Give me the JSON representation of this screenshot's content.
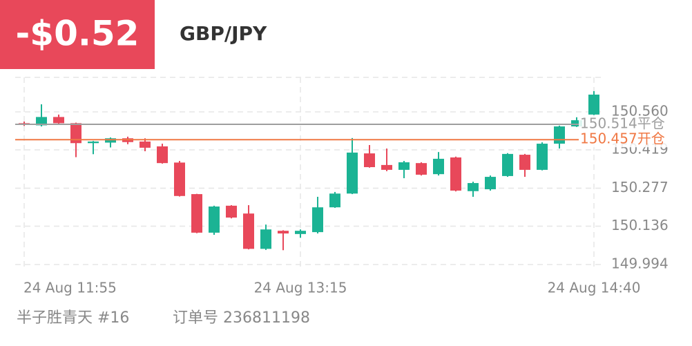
{
  "header": {
    "pnl": "-$0.52",
    "pair": "GBP/JPY"
  },
  "chart_data": {
    "type": "candlestick",
    "categories": [
      "24 Aug 11:55",
      null,
      null,
      null,
      null,
      null,
      null,
      null,
      null,
      null,
      null,
      null,
      null,
      null,
      null,
      null,
      "24 Aug 13:15",
      null,
      null,
      null,
      null,
      null,
      null,
      null,
      null,
      null,
      null,
      null,
      null,
      null,
      null,
      null,
      null,
      "24 Aug 14:40"
    ],
    "open": [
      150.518,
      150.51,
      150.541,
      150.518,
      150.444,
      150.446,
      150.462,
      150.45,
      150.432,
      150.372,
      150.255,
      150.112,
      150.212,
      150.183,
      150.052,
      150.119,
      150.107,
      150.114,
      150.206,
      150.257,
      150.406,
      150.363,
      150.345,
      150.37,
      150.329,
      150.391,
      150.266,
      150.273,
      150.322,
      150.401,
      150.345,
      150.442,
      150.506,
      150.55
    ],
    "high": [
      150.524,
      150.588,
      150.55,
      150.52,
      150.452,
      150.465,
      150.468,
      150.462,
      150.442,
      150.378,
      150.256,
      150.212,
      150.214,
      150.214,
      150.142,
      150.121,
      150.124,
      150.245,
      150.263,
      150.463,
      150.437,
      150.424,
      150.378,
      150.373,
      150.411,
      150.394,
      150.301,
      150.324,
      150.407,
      150.404,
      150.447,
      150.509,
      150.54,
      150.637
    ],
    "low": [
      150.508,
      150.506,
      150.516,
      150.392,
      150.403,
      150.428,
      150.44,
      150.414,
      150.368,
      150.246,
      150.11,
      150.104,
      150.165,
      150.05,
      150.048,
      150.047,
      150.093,
      150.109,
      150.204,
      150.255,
      150.353,
      150.34,
      150.314,
      150.324,
      150.324,
      150.265,
      150.245,
      150.268,
      150.319,
      150.319,
      150.343,
      150.424,
      150.504,
      150.548
    ],
    "close": [
      150.512,
      150.541,
      150.518,
      150.444,
      150.45,
      150.462,
      150.448,
      150.427,
      150.37,
      150.248,
      150.112,
      150.209,
      150.168,
      150.052,
      150.124,
      150.109,
      150.119,
      150.206,
      150.257,
      150.409,
      150.355,
      150.345,
      150.373,
      150.327,
      150.386,
      150.268,
      150.296,
      150.319,
      150.404,
      150.345,
      150.442,
      150.506,
      150.529,
      150.624
    ],
    "up_color": "#1bb394",
    "down_color": "#e8485a",
    "ylim": [
      149.976,
      150.688
    ],
    "yticks": [
      149.994,
      150.136,
      150.277,
      150.419,
      {
        "value": 150.56,
        "label": "150.560"
      }
    ],
    "grid": true,
    "lines": [
      {
        "value": 150.514,
        "label": "150.514平仓",
        "color": "#9e9e9e"
      },
      {
        "value": 150.457,
        "label": "150.457开仓",
        "color": "#f07844"
      }
    ]
  },
  "footer": {
    "user": "半子胜青天 #16",
    "order": "订单号 236811198"
  }
}
